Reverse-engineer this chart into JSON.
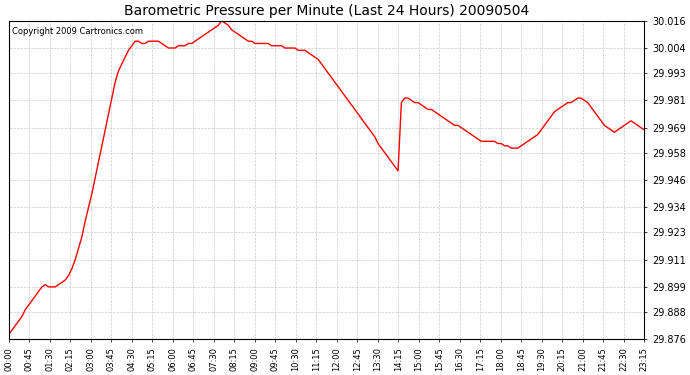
{
  "title": "Barometric Pressure per Minute (Last 24 Hours) 20090504",
  "copyright": "Copyright 2009 Cartronics.com",
  "line_color": "#ff0000",
  "background_color": "#ffffff",
  "grid_color": "#cccccc",
  "ylim": [
    29.876,
    30.016
  ],
  "yticks": [
    29.876,
    29.888,
    29.899,
    29.911,
    29.923,
    29.934,
    29.946,
    29.958,
    29.969,
    29.981,
    29.993,
    30.004,
    30.016
  ],
  "xtick_labels": [
    "00:00",
    "00:45",
    "01:30",
    "02:15",
    "03:00",
    "03:45",
    "04:30",
    "05:15",
    "06:00",
    "06:45",
    "07:30",
    "08:15",
    "09:00",
    "09:45",
    "10:30",
    "11:15",
    "12:00",
    "12:45",
    "13:30",
    "14:15",
    "15:00",
    "15:45",
    "16:30",
    "17:15",
    "18:00",
    "18:45",
    "19:30",
    "20:15",
    "21:00",
    "21:45",
    "22:30",
    "23:15"
  ],
  "pressure_data": [
    29.878,
    29.88,
    29.882,
    29.884,
    29.886,
    29.889,
    29.891,
    29.893,
    29.895,
    29.897,
    29.899,
    29.9,
    29.899,
    29.899,
    29.899,
    29.9,
    29.901,
    29.902,
    29.904,
    29.907,
    29.911,
    29.916,
    29.921,
    29.928,
    29.934,
    29.94,
    29.947,
    29.954,
    29.961,
    29.968,
    29.975,
    29.982,
    29.989,
    29.994,
    29.997,
    30.0,
    30.003,
    30.005,
    30.007,
    30.007,
    30.006,
    30.006,
    30.007,
    30.007,
    30.007,
    30.007,
    30.006,
    30.005,
    30.004,
    30.004,
    30.004,
    30.005,
    30.005,
    30.005,
    30.006,
    30.006,
    30.007,
    30.008,
    30.009,
    30.01,
    30.011,
    30.012,
    30.013,
    30.014,
    30.016,
    30.015,
    30.014,
    30.012,
    30.011,
    30.01,
    30.009,
    30.008,
    30.007,
    30.007,
    30.006,
    30.006,
    30.006,
    30.006,
    30.006,
    30.005,
    30.005,
    30.005,
    30.005,
    30.004,
    30.004,
    30.004,
    30.004,
    30.003,
    30.003,
    30.003,
    30.002,
    30.001,
    30.0,
    29.999,
    29.997,
    29.995,
    29.993,
    29.991,
    29.989,
    29.987,
    29.985,
    29.983,
    29.981,
    29.979,
    29.977,
    29.975,
    29.973,
    29.971,
    29.969,
    29.967,
    29.965,
    29.962,
    29.96,
    29.958,
    29.956,
    29.954,
    29.952,
    29.95,
    29.98,
    29.982,
    29.982,
    29.981,
    29.98,
    29.98,
    29.979,
    29.978,
    29.977,
    29.977,
    29.976,
    29.975,
    29.974,
    29.973,
    29.972,
    29.971,
    29.97,
    29.97,
    29.969,
    29.968,
    29.967,
    29.966,
    29.965,
    29.964,
    29.963,
    29.963,
    29.963,
    29.963,
    29.963,
    29.962,
    29.962,
    29.961,
    29.961,
    29.96,
    29.96,
    29.96,
    29.961,
    29.962,
    29.963,
    29.964,
    29.965,
    29.966,
    29.968,
    29.97,
    29.972,
    29.974,
    29.976,
    29.977,
    29.978,
    29.979,
    29.98,
    29.98,
    29.981,
    29.982,
    29.982,
    29.981,
    29.98,
    29.978,
    29.976,
    29.974,
    29.972,
    29.97,
    29.969,
    29.968,
    29.967,
    29.968,
    29.969,
    29.97,
    29.971,
    29.972,
    29.971,
    29.97,
    29.969,
    29.968
  ]
}
